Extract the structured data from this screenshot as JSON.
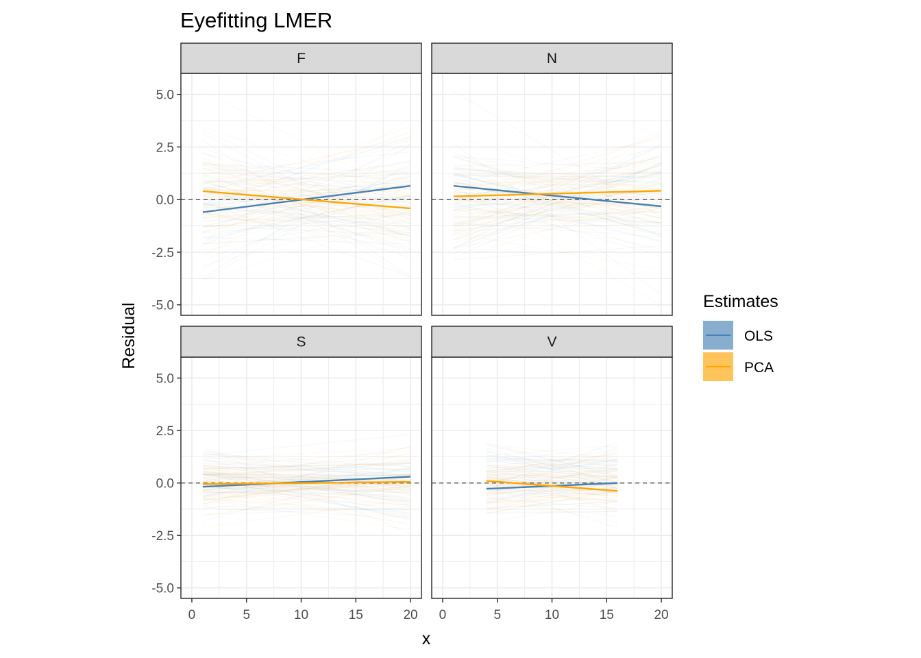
{
  "chart_data": {
    "type": "line",
    "title": "Eyefitting LMER",
    "xlabel": "x",
    "ylabel": "Residual",
    "xlim": [
      -1,
      21
    ],
    "ylim": [
      -5.5,
      6.0
    ],
    "x_ticks": [
      0,
      5,
      10,
      15,
      20
    ],
    "x_tick_labels": [
      "0",
      "5",
      "10",
      "15",
      "20"
    ],
    "y_ticks": [
      -5,
      -2.5,
      0,
      2.5,
      5
    ],
    "y_tick_labels": [
      "-5.0",
      "-2.5",
      "0.0",
      "2.5",
      "5.0"
    ],
    "reference_line": {
      "y": 0,
      "style": "dashed",
      "color": "#666666"
    },
    "grid": true,
    "legend": {
      "title": "Estimates",
      "position": "right",
      "entries": [
        {
          "name": "OLS",
          "color": "#4682B4"
        },
        {
          "name": "PCA",
          "color": "#FFA500"
        }
      ]
    },
    "facets": [
      {
        "label": "F",
        "x_range": [
          1,
          20
        ],
        "band_halfwidth": [
          5,
          2.2,
          5
        ],
        "series": [
          {
            "name": "OLS",
            "x": [
              1,
              20
            ],
            "y": [
              -0.6,
              0.65
            ]
          },
          {
            "name": "PCA",
            "x": [
              1,
              20
            ],
            "y": [
              0.4,
              -0.42
            ]
          }
        ]
      },
      {
        "label": "N",
        "x_range": [
          1,
          20
        ],
        "band_halfwidth": [
          4.5,
          2.0,
          4.5
        ],
        "series": [
          {
            "name": "OLS",
            "x": [
              1,
              20
            ],
            "y": [
              0.65,
              -0.32
            ]
          },
          {
            "name": "PCA",
            "x": [
              1,
              20
            ],
            "y": [
              0.15,
              0.42
            ]
          }
        ]
      },
      {
        "label": "S",
        "x_range": [
          1,
          20
        ],
        "band_halfwidth": [
          2.5,
          1.3,
          2.5
        ],
        "series": [
          {
            "name": "OLS",
            "x": [
              1,
              20
            ],
            "y": [
              -0.18,
              0.3
            ]
          },
          {
            "name": "PCA",
            "x": [
              1,
              20
            ],
            "y": [
              -0.05,
              0.05
            ]
          }
        ]
      },
      {
        "label": "V",
        "x_range": [
          4,
          16
        ],
        "band_halfwidth": [
          2.4,
          1.6,
          2.7
        ],
        "series": [
          {
            "name": "OLS",
            "x": [
              4,
              16
            ],
            "y": [
              -0.28,
              0.0
            ]
          },
          {
            "name": "PCA",
            "x": [
              4,
              16
            ],
            "y": [
              0.1,
              -0.38
            ]
          }
        ]
      }
    ]
  }
}
